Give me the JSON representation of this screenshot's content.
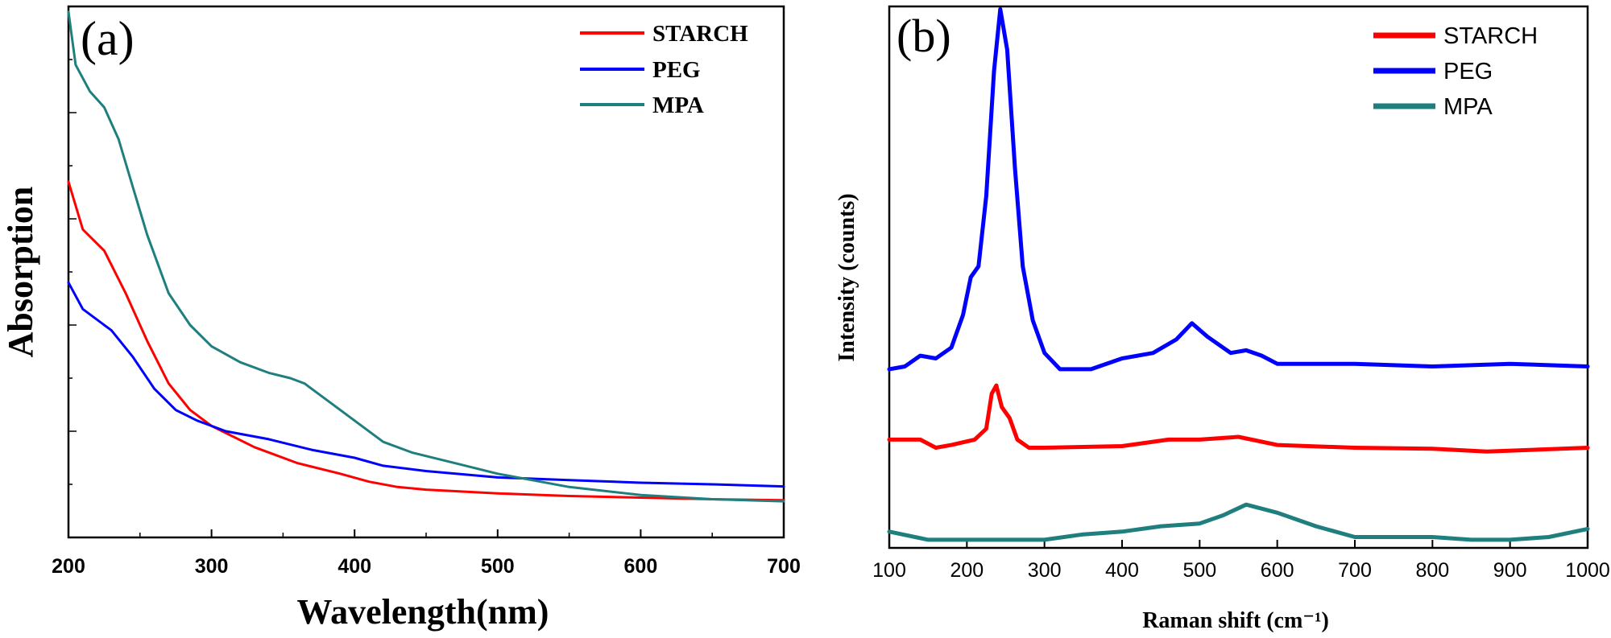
{
  "chart_data": [
    {
      "panel_label": "(a)",
      "type": "line",
      "xlabel": "Wavelength(nm)",
      "ylabel": "Absorption",
      "xlim": [
        200,
        700
      ],
      "ylim": [
        0,
        1
      ],
      "x_ticks": [
        200,
        300,
        400,
        500,
        600,
        700
      ],
      "x_tick_labels": [
        "200",
        "300",
        "400",
        "500",
        "600",
        "700"
      ],
      "grid": false,
      "legend_position": "top-right",
      "series": [
        {
          "name": "STARCH",
          "color": "#ff0000",
          "x": [
            200,
            210,
            225,
            240,
            255,
            270,
            285,
            300,
            330,
            360,
            390,
            410,
            430,
            450,
            500,
            550,
            600,
            650,
            700
          ],
          "y": [
            0.67,
            0.58,
            0.54,
            0.46,
            0.37,
            0.29,
            0.24,
            0.21,
            0.17,
            0.14,
            0.12,
            0.105,
            0.095,
            0.09,
            0.083,
            0.078,
            0.075,
            0.072,
            0.07
          ]
        },
        {
          "name": "PEG",
          "color": "#0000ff",
          "x": [
            200,
            210,
            230,
            245,
            260,
            275,
            290,
            310,
            340,
            370,
            400,
            420,
            450,
            500,
            550,
            600,
            650,
            700
          ],
          "y": [
            0.48,
            0.43,
            0.39,
            0.34,
            0.28,
            0.24,
            0.22,
            0.2,
            0.185,
            0.165,
            0.15,
            0.135,
            0.125,
            0.113,
            0.108,
            0.103,
            0.1,
            0.096
          ]
        },
        {
          "name": "MPA",
          "color": "#1f7f7f",
          "x": [
            200,
            205,
            215,
            225,
            235,
            245,
            255,
            270,
            285,
            300,
            320,
            340,
            355,
            365,
            380,
            400,
            420,
            440,
            470,
            500,
            550,
            600,
            650,
            700
          ],
          "y": [
            0.99,
            0.89,
            0.84,
            0.81,
            0.75,
            0.66,
            0.57,
            0.46,
            0.4,
            0.36,
            0.33,
            0.31,
            0.3,
            0.29,
            0.26,
            0.22,
            0.18,
            0.16,
            0.14,
            0.12,
            0.095,
            0.08,
            0.072,
            0.068
          ]
        }
      ]
    },
    {
      "panel_label": "(b)",
      "type": "line",
      "xlabel": "Raman shift (cm⁻¹)",
      "ylabel": "Intensity (counts)",
      "xlim": [
        100,
        1000
      ],
      "ylim": [
        0,
        1
      ],
      "x_ticks": [
        100,
        200,
        300,
        400,
        500,
        600,
        700,
        800,
        900,
        1000
      ],
      "x_tick_labels": [
        "100",
        "200",
        "300",
        "400",
        "500",
        "600",
        "700",
        "800",
        "900",
        "1000"
      ],
      "grid": false,
      "legend_position": "top-right",
      "series": [
        {
          "name": "STARCH",
          "color": "#ff0000",
          "x": [
            100,
            140,
            160,
            180,
            210,
            225,
            232,
            238,
            245,
            255,
            265,
            280,
            300,
            400,
            460,
            500,
            550,
            600,
            700,
            800,
            870,
            1000
          ],
          "y": [
            0.2,
            0.2,
            0.185,
            0.19,
            0.2,
            0.22,
            0.285,
            0.3,
            0.26,
            0.24,
            0.2,
            0.185,
            0.185,
            0.188,
            0.2,
            0.2,
            0.205,
            0.19,
            0.185,
            0.183,
            0.178,
            0.185
          ]
        },
        {
          "name": "PEG",
          "color": "#0000ff",
          "x": [
            100,
            120,
            140,
            160,
            180,
            195,
            205,
            215,
            225,
            235,
            243,
            252,
            262,
            272,
            285,
            300,
            320,
            360,
            400,
            440,
            470,
            490,
            510,
            540,
            560,
            580,
            600,
            620,
            700,
            800,
            900,
            1000
          ],
          "y": [
            0.33,
            0.335,
            0.355,
            0.35,
            0.37,
            0.43,
            0.5,
            0.52,
            0.65,
            0.88,
            0.995,
            0.92,
            0.7,
            0.52,
            0.42,
            0.36,
            0.33,
            0.33,
            0.35,
            0.36,
            0.385,
            0.415,
            0.39,
            0.36,
            0.365,
            0.355,
            0.34,
            0.34,
            0.34,
            0.335,
            0.34,
            0.335
          ]
        },
        {
          "name": "MPA",
          "color": "#1f7f7f",
          "x": [
            100,
            150,
            200,
            300,
            350,
            400,
            450,
            500,
            530,
            560,
            600,
            650,
            700,
            800,
            850,
            900,
            950,
            1000
          ],
          "y": [
            0.03,
            0.015,
            0.015,
            0.015,
            0.025,
            0.03,
            0.04,
            0.045,
            0.06,
            0.08,
            0.065,
            0.04,
            0.02,
            0.02,
            0.015,
            0.015,
            0.02,
            0.035
          ]
        }
      ]
    }
  ]
}
